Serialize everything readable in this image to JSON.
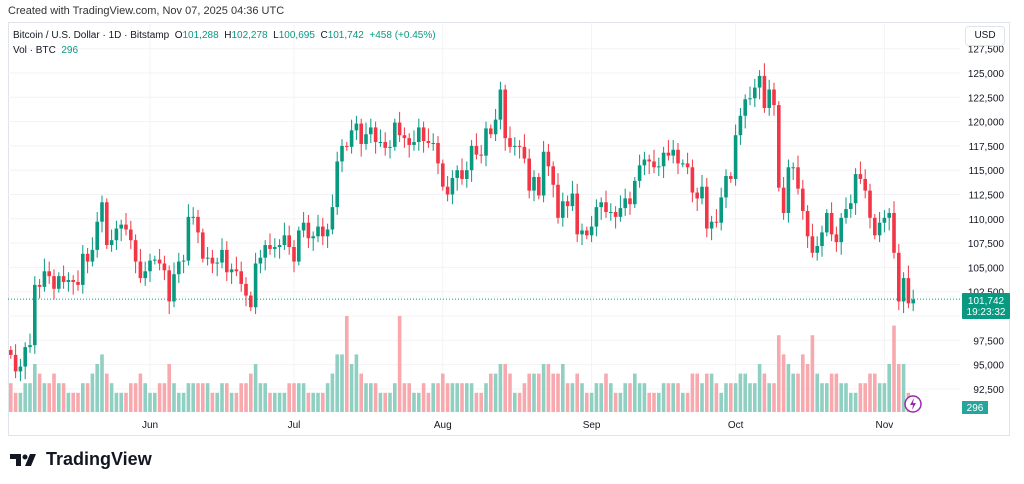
{
  "created_label": "Created with TradingView.com, Nov 07, 2025 04:36 UTC",
  "legend": {
    "symbol": "Bitcoin / U.S. Dollar · 1D · Bitstamp",
    "o_label": "O",
    "o": "101,288",
    "h_label": "H",
    "h": "102,278",
    "l_label": "L",
    "l": "100,695",
    "c_label": "C",
    "c": "101,742",
    "change": "+458 (+0.45%)",
    "vol_label": "Vol · BTC",
    "vol": "296"
  },
  "currency": "USD",
  "last_price": "101,742",
  "countdown": "19:23:32",
  "vol_badge": "296",
  "brand": "TradingView",
  "colors": {
    "up": "#089981",
    "down": "#f23645",
    "up_vol": "#8fd0c2",
    "down_vol": "#f7a9ae"
  },
  "chart_data": {
    "type": "candlestick",
    "price_ticks": [
      92500,
      95000,
      97500,
      100000,
      102500,
      105000,
      107500,
      110000,
      112500,
      115000,
      117500,
      120000,
      122500,
      125000,
      127500
    ],
    "price_tick_labels": [
      "92,500",
      "95,000",
      "97,500",
      "100,000",
      "102,500",
      "105,000",
      "107,500",
      "110,000",
      "112,500",
      "115,000",
      "117,500",
      "120,000",
      "122,500",
      "125,000",
      "127,500"
    ],
    "x_labels": [
      {
        "label": "Jun",
        "index": 29
      },
      {
        "label": "Jul",
        "index": 59
      },
      {
        "label": "Aug",
        "index": 90
      },
      {
        "label": "Sep",
        "index": 121
      },
      {
        "label": "Oct",
        "index": 151
      },
      {
        "label": "Nov",
        "index": 182
      }
    ],
    "first_open": 96.5,
    "close_thousands": [
      96.0,
      94.3,
      94.8,
      96.8,
      97.0,
      103.2,
      103.0,
      104.6,
      104.1,
      102.8,
      104.1,
      103.5,
      103.7,
      103.5,
      103.2,
      106.4,
      105.6,
      106.8,
      109.7,
      111.7,
      107.3,
      107.8,
      109.0,
      109.4,
      108.9,
      107.8,
      105.6,
      103.9,
      104.6,
      105.7,
      105.8,
      105.4,
      104.7,
      101.5,
      104.3,
      105.6,
      105.7,
      110.2,
      110.2,
      108.6,
      105.9,
      106.0,
      105.4,
      105.5,
      106.8,
      104.5,
      104.8,
      104.6,
      103.3,
      102.1,
      100.9,
      105.4,
      106.0,
      107.3,
      106.9,
      107.1,
      107.3,
      108.3,
      107.1,
      105.6,
      108.8,
      109.6,
      108.0,
      108.2,
      109.2,
      108.2,
      108.9,
      111.2,
      115.9,
      117.5,
      117.4,
      119.1,
      119.8,
      117.7,
      118.7,
      119.4,
      117.9,
      117.9,
      117.3,
      117.4,
      119.9,
      118.6,
      118.3,
      117.6,
      117.9,
      119.4,
      118.0,
      117.8,
      117.8,
      115.7,
      113.3,
      112.5,
      114.2,
      115.0,
      114.1,
      115.0,
      117.5,
      116.6,
      116.5,
      119.3,
      118.7,
      120.2,
      123.3,
      118.3,
      117.4,
      117.5,
      117.4,
      116.2,
      112.9,
      114.3,
      112.4,
      116.9,
      115.4,
      113.5,
      110.1,
      111.8,
      111.3,
      112.6,
      108.4,
      108.8,
      108.3,
      109.2,
      111.2,
      111.7,
      110.7,
      110.7,
      110.2,
      111.1,
      112.1,
      111.5,
      113.9,
      115.5,
      116.1,
      115.9,
      115.3,
      115.4,
      116.8,
      116.5,
      117.1,
      115.7,
      115.7,
      115.3,
      112.7,
      112.1,
      113.3,
      109.0,
      109.7,
      109.6,
      112.2,
      114.4,
      114.1,
      118.6,
      120.6,
      122.3,
      122.4,
      123.5,
      124.7,
      121.4,
      123.3,
      121.7,
      113.2,
      110.6,
      115.3,
      115.3,
      113.1,
      110.8,
      108.2,
      106.5,
      107.2,
      108.6,
      110.6,
      108.4,
      107.6,
      110.1,
      111.0,
      111.6,
      114.6,
      114.1,
      112.9,
      110.1,
      108.3,
      109.6,
      110.1,
      110.6,
      106.5,
      101.5,
      103.9,
      101.3,
      101.7
    ],
    "volume_relative": [
      3,
      2,
      2,
      3,
      3,
      5,
      4,
      3,
      3,
      4,
      3,
      3,
      2,
      2,
      2,
      3,
      3,
      4,
      5,
      6,
      4,
      3,
      2,
      2,
      2,
      3,
      3,
      4,
      3,
      2,
      2,
      3,
      3,
      5,
      3,
      2,
      2,
      3,
      3,
      3,
      3,
      3,
      2,
      2,
      3,
      3,
      2,
      2,
      3,
      3,
      4,
      5,
      3,
      3,
      2,
      2,
      2,
      2,
      3,
      3,
      3,
      3,
      2,
      2,
      2,
      2,
      3,
      4,
      6,
      6,
      10,
      5,
      6,
      4,
      3,
      3,
      3,
      2,
      2,
      2,
      3,
      10,
      3,
      3,
      2,
      2,
      3,
      2,
      3,
      3,
      4,
      3,
      3,
      3,
      3,
      3,
      3,
      2,
      2,
      3,
      4,
      4,
      5,
      5,
      4,
      2,
      2,
      3,
      4,
      4,
      4,
      5,
      5,
      4,
      4,
      5,
      3,
      3,
      4,
      3,
      2,
      2,
      3,
      3,
      4,
      3,
      2,
      2,
      3,
      3,
      4,
      3,
      3,
      2,
      2,
      2,
      3,
      3,
      3,
      3,
      2,
      2,
      4,
      4,
      3,
      4,
      4,
      3,
      2,
      3,
      3,
      3,
      4,
      4,
      3,
      3,
      5,
      4,
      3,
      3,
      8,
      6,
      5,
      4,
      4,
      6,
      5,
      8,
      4,
      3,
      3,
      4,
      4,
      3,
      3,
      2,
      2,
      3,
      3,
      4,
      4,
      3,
      3,
      5,
      9,
      5,
      5,
      2,
      1
    ]
  }
}
